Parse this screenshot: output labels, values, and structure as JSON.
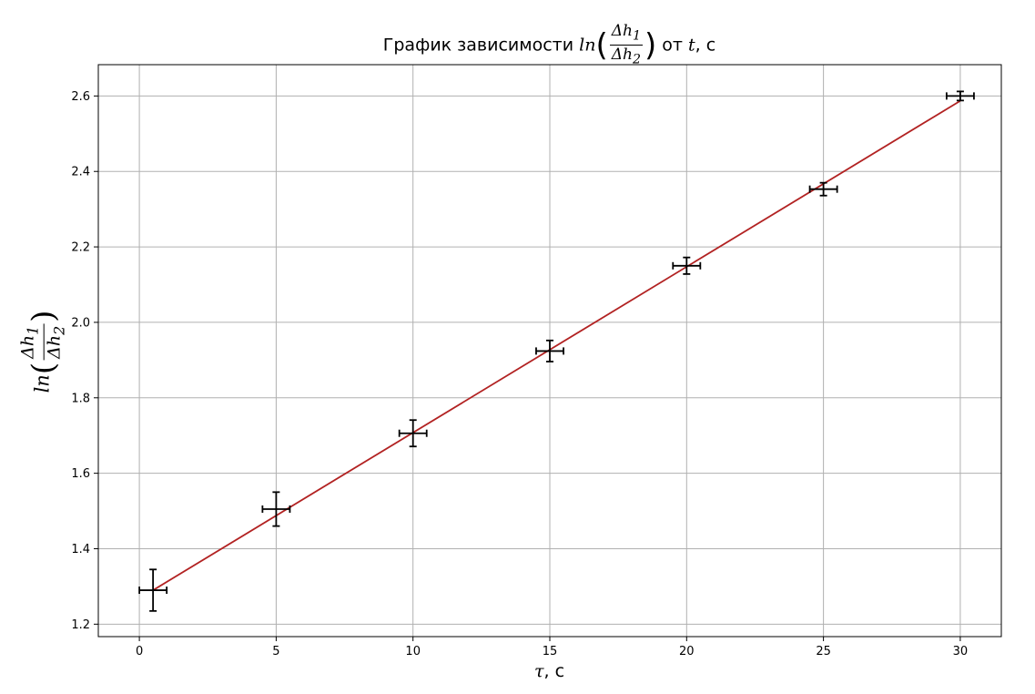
{
  "chart_data": {
    "type": "scatter",
    "title": {
      "prefix": "График зависимости ",
      "fn": "ln",
      "num": "Δh",
      "num_sub": "1",
      "den": "Δh",
      "den_sub": "2",
      "mid": " от ",
      "var": "t",
      "suffix": ", с"
    },
    "xlabel": {
      "var": "τ",
      "suffix": ", с"
    },
    "ylabel": {
      "fn": "ln",
      "num": "Δh",
      "num_sub": "1",
      "den": "Δh",
      "den_sub": "2"
    },
    "xlim": [
      -1.5,
      31.5
    ],
    "ylim": [
      1.167,
      2.683
    ],
    "xticks": [
      0,
      5,
      10,
      15,
      20,
      25,
      30
    ],
    "yticks": [
      1.2,
      1.4,
      1.6,
      1.8,
      2.0,
      2.2,
      2.4,
      2.6
    ],
    "grid": true,
    "series": [
      {
        "kind": "errorbar",
        "color": "#000000",
        "points": [
          {
            "x": 0.5,
            "y": 1.29,
            "xerr": 0.5,
            "yerr": 0.055
          },
          {
            "x": 5.0,
            "y": 1.505,
            "xerr": 0.5,
            "yerr": 0.045
          },
          {
            "x": 10.0,
            "y": 1.706,
            "xerr": 0.5,
            "yerr": 0.035
          },
          {
            "x": 15.0,
            "y": 1.924,
            "xerr": 0.5,
            "yerr": 0.028
          },
          {
            "x": 20.0,
            "y": 2.15,
            "xerr": 0.5,
            "yerr": 0.022
          },
          {
            "x": 25.0,
            "y": 2.353,
            "xerr": 0.5,
            "yerr": 0.017
          },
          {
            "x": 30.0,
            "y": 2.6,
            "xerr": 0.5,
            "yerr": 0.012
          }
        ]
      },
      {
        "kind": "fit-line",
        "color": "#b22222",
        "x": [
          0.5,
          30.0
        ],
        "y": [
          1.29,
          2.587
        ]
      }
    ]
  }
}
